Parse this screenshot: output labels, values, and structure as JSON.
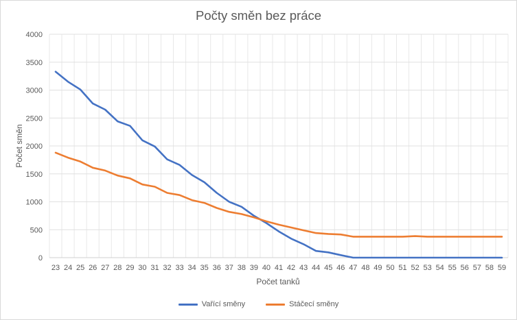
{
  "chart_data": {
    "type": "line",
    "title": "Počty směn bez práce",
    "xlabel": "Počet tanků",
    "ylabel": "Počet směn",
    "ylim": [
      0,
      4000
    ],
    "yticks": [
      0,
      500,
      1000,
      1500,
      2000,
      2500,
      3000,
      3500,
      4000
    ],
    "grid": true,
    "legend": "bottom",
    "x": [
      23,
      24,
      25,
      26,
      27,
      28,
      29,
      30,
      31,
      32,
      33,
      34,
      35,
      36,
      37,
      38,
      39,
      40,
      41,
      42,
      43,
      44,
      45,
      46,
      47,
      48,
      49,
      50,
      51,
      52,
      53,
      54,
      55,
      56,
      57,
      58,
      59
    ],
    "series": [
      {
        "name": "Vařící směny",
        "color": "#4472c4",
        "values": [
          3330,
          3150,
          3010,
          2760,
          2650,
          2440,
          2360,
          2100,
          1990,
          1760,
          1660,
          1480,
          1350,
          1160,
          1000,
          910,
          750,
          620,
          470,
          340,
          240,
          120,
          95,
          45,
          0,
          0,
          0,
          0,
          0,
          0,
          0,
          0,
          0,
          0,
          0,
          0,
          0
        ]
      },
      {
        "name": "Stáčecí směny",
        "color": "#ed7d31",
        "values": [
          1880,
          1790,
          1720,
          1610,
          1560,
          1470,
          1420,
          1310,
          1270,
          1160,
          1120,
          1030,
          980,
          890,
          820,
          780,
          720,
          650,
          590,
          540,
          490,
          440,
          425,
          415,
          375,
          375,
          375,
          375,
          375,
          385,
          375,
          375,
          375,
          375,
          375,
          375,
          375
        ]
      }
    ]
  }
}
